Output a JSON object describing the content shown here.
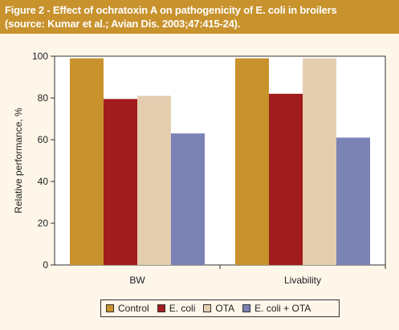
{
  "figure": {
    "title_line1": "Figure 2 - Effect of ochratoxin A on pathogenicity of  E. coli in broilers",
    "title_line2": "(source: Kumar et al.; Avian Dis. 2003;47:415-24)."
  },
  "chart_data": {
    "type": "bar",
    "categories": [
      "BW",
      "Livability"
    ],
    "series": [
      {
        "name": "Control",
        "color": "#c8922d",
        "values": [
          99,
          99
        ]
      },
      {
        "name": "E. coli",
        "color": "#a11c1c",
        "values": [
          79.5,
          82
        ]
      },
      {
        "name": "OTA",
        "color": "#e4ceb0",
        "values": [
          81,
          99
        ]
      },
      {
        "name": "E. coli + OTA",
        "color": "#7b82b4",
        "values": [
          63,
          61
        ]
      }
    ],
    "xlabel": "",
    "ylabel": "Relative performance, %",
    "ylim": [
      0,
      100
    ],
    "yticks": [
      "0",
      "20",
      "40",
      "60",
      "80",
      "100"
    ],
    "grid": false,
    "legend_position": "bottom"
  }
}
